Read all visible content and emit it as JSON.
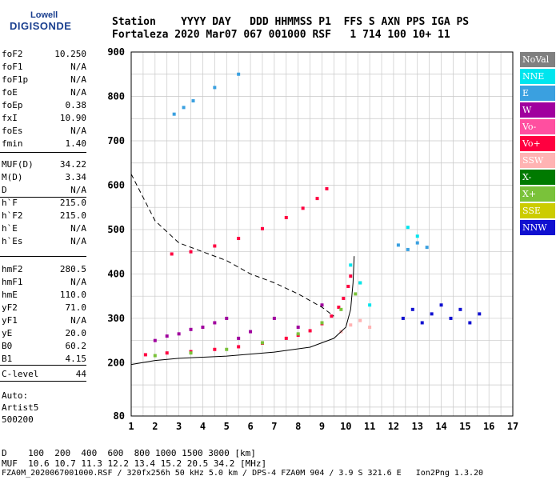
{
  "logo": {
    "line1": "Lowell",
    "line2": "DIGISONDE"
  },
  "header": {
    "row1": "Station    YYYY DAY   DDD HHMMSS P1  FFS S AXN PPS IGA PS",
    "row2": "Fortaleza 2020 Mar07 067 001000 RSF   1 714 100 10+ 11"
  },
  "params": [
    {
      "name": "foF2",
      "value": "10.250"
    },
    {
      "name": "foF1",
      "value": "N/A"
    },
    {
      "name": "foF1p",
      "value": "N/A"
    },
    {
      "name": "foE",
      "value": "N/A"
    },
    {
      "name": "foEp",
      "value": "0.38"
    },
    {
      "name": "fxI",
      "value": "10.90"
    },
    {
      "name": "foEs",
      "value": "N/A"
    },
    {
      "name": "fmin",
      "value": "1.40"
    },
    {
      "name": "MUF(D)",
      "value": "34.22"
    },
    {
      "name": "M(D)",
      "value": "3.34"
    },
    {
      "name": "D",
      "value": "N/A"
    },
    {
      "name": "h`F",
      "value": "215.0"
    },
    {
      "name": "h`F2",
      "value": "215.0"
    },
    {
      "name": "h`E",
      "value": "N/A"
    },
    {
      "name": "h`Es",
      "value": "N/A"
    },
    {
      "name": "hmF2",
      "value": "280.5"
    },
    {
      "name": "hmF1",
      "value": "N/A"
    },
    {
      "name": "hmE",
      "value": "110.0"
    },
    {
      "name": "yF2",
      "value": "71.0"
    },
    {
      "name": "yF1",
      "value": "N/A"
    },
    {
      "name": "yE",
      "value": "20.0"
    },
    {
      "name": "B0",
      "value": "60.2"
    },
    {
      "name": "B1",
      "value": "4.15"
    },
    {
      "name": "C-level",
      "value": "44"
    }
  ],
  "autoscale": {
    "l1": "Auto:",
    "l2": "Artist5",
    "l3": "500200"
  },
  "footer": {
    "row1": "D    100  200  400  600  800 1000 1500 3000 [km]",
    "row2": "MUF  10.6 10.7 11.3 12.2 13.4 15.2 20.5 34.2 [MHz]",
    "row3": "FZA0M_2020067001000.RSF / 320fx256h 50 kHz 5.0 km / DPS-4 FZA0M 904 / 3.9 S 321.6 E   Ion2Png 1.3.20"
  },
  "legend": [
    {
      "label": "NoVal",
      "color": "#808080"
    },
    {
      "label": "NNE",
      "color": "#00e5ee"
    },
    {
      "label": "E",
      "color": "#3aa0e0"
    },
    {
      "label": "W",
      "color": "#a0009e"
    },
    {
      "label": "Vo-",
      "color": "#ff4fa0"
    },
    {
      "label": "Vo+",
      "color": "#ff0040"
    },
    {
      "label": "SSW",
      "color": "#ffb3b3"
    },
    {
      "label": "X-",
      "color": "#007a00"
    },
    {
      "label": "X+",
      "color": "#7ac23a"
    },
    {
      "label": "SSE",
      "color": "#cccc00"
    },
    {
      "label": "NNW",
      "color": "#1010d0"
    }
  ],
  "chart_data": {
    "type": "scatter",
    "xlim": [
      1,
      17
    ],
    "ylim": [
      80,
      900
    ],
    "x_ticks": [
      1,
      2,
      3,
      4,
      5,
      6,
      7,
      8,
      9,
      10,
      11,
      12,
      13,
      14,
      15,
      16,
      17
    ],
    "y_ticks": [
      80,
      200,
      300,
      400,
      500,
      600,
      700,
      800,
      900
    ],
    "series": [
      {
        "name": "Vo+",
        "color": "#ff0040",
        "x": [
          1.6,
          2.5,
          3.5,
          4.5,
          5.5,
          6.5,
          7.5,
          8.0,
          8.5,
          9.0,
          9.4,
          9.7,
          9.9,
          10.1,
          10.2
        ],
        "y": [
          218,
          222,
          225,
          230,
          236,
          244,
          255,
          262,
          272,
          288,
          305,
          325,
          345,
          372,
          395
        ]
      },
      {
        "name": "Vo+ (2F2)",
        "color": "#ff0040",
        "x": [
          2.7,
          3.5,
          4.5,
          5.5,
          6.5,
          7.5,
          8.2,
          8.8,
          9.2
        ],
        "y": [
          445,
          450,
          463,
          480,
          502,
          527,
          548,
          570,
          592
        ]
      },
      {
        "name": "X+",
        "color": "#7ac23a",
        "x": [
          2.0,
          3.5,
          5.0,
          6.5,
          8.0,
          9.0,
          9.8,
          10.4,
          10.6
        ],
        "y": [
          216,
          222,
          230,
          245,
          265,
          290,
          320,
          355,
          380
        ]
      },
      {
        "name": "W",
        "color": "#a0009e",
        "x": [
          2.0,
          2.5,
          3.0,
          3.5,
          4.0,
          4.5,
          5.0,
          5.5,
          6.0,
          7.0,
          8.0,
          9.0
        ],
        "y": [
          250,
          260,
          265,
          275,
          280,
          290,
          300,
          255,
          270,
          300,
          280,
          330
        ]
      },
      {
        "name": "NNW",
        "color": "#1010d0",
        "x": [
          12.4,
          12.8,
          13.2,
          13.6,
          14.0,
          14.4,
          14.8,
          15.2,
          15.6
        ],
        "y": [
          300,
          320,
          290,
          310,
          330,
          300,
          320,
          290,
          310
        ]
      },
      {
        "name": "E",
        "color": "#3aa0e0",
        "x": [
          12.2,
          12.6,
          13.0,
          13.4,
          2.8,
          3.2,
          3.6,
          4.5,
          5.5
        ],
        "y": [
          465,
          455,
          470,
          460,
          760,
          775,
          790,
          820,
          850
        ]
      },
      {
        "name": "NNE",
        "color": "#00e5ee",
        "x": [
          10.2,
          10.6,
          11.0,
          12.6,
          13.0
        ],
        "y": [
          420,
          380,
          330,
          505,
          485
        ]
      },
      {
        "name": "SSW",
        "color": "#ffb3b3",
        "x": [
          9.8,
          10.2,
          10.6,
          11.0
        ],
        "y": [
          270,
          285,
          295,
          280
        ]
      }
    ],
    "curves": [
      {
        "name": "MUF dashed",
        "style": "dashed",
        "x": [
          1.0,
          2.0,
          3.0,
          4.0,
          5.0,
          6.0,
          7.0,
          8.0,
          9.0,
          9.5
        ],
        "y": [
          625,
          520,
          470,
          450,
          430,
          400,
          380,
          355,
          325,
          305
        ]
      },
      {
        "name": "profile",
        "style": "solid",
        "x": [
          1.0,
          2.0,
          3.0,
          5.0,
          7.0,
          8.5,
          9.5,
          10.0,
          10.2,
          10.3,
          10.35
        ],
        "y": [
          196,
          205,
          210,
          215,
          224,
          235,
          255,
          280,
          320,
          380,
          440
        ]
      }
    ]
  }
}
